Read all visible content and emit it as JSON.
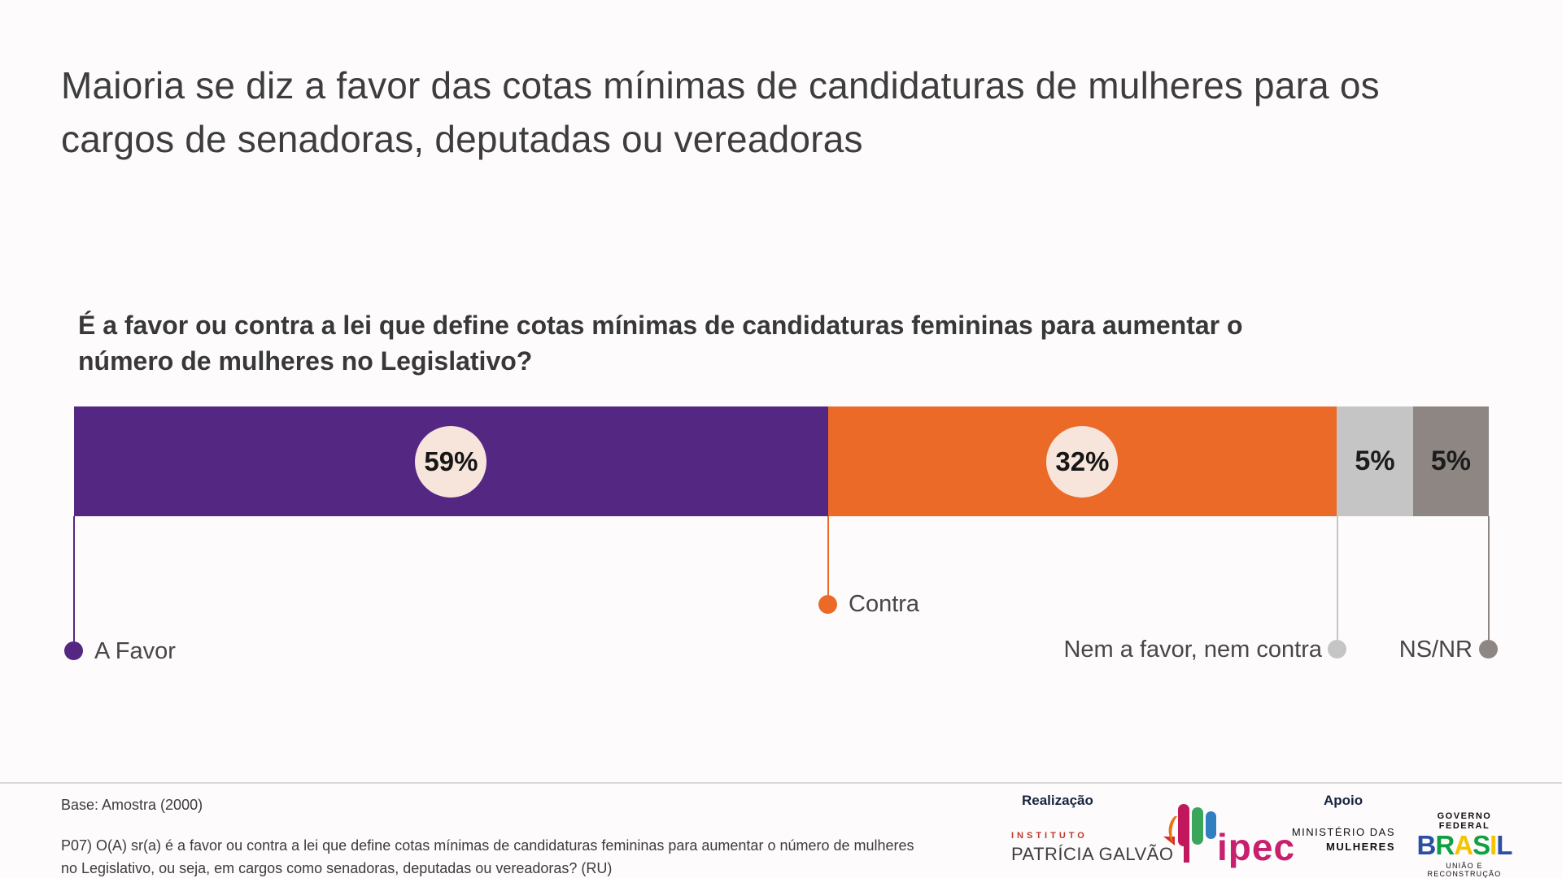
{
  "slide": {
    "title_line1": "Maioria se diz a favor das cotas mínimas de candidaturas de mulheres para os",
    "title_line2": "cargos de senadoras, deputadas ou vereadoras",
    "question_line1": "É a favor ou contra a lei que define cotas mínimas de candidaturas femininas para aumentar o",
    "question_line2": "número de mulheres no Legislativo?"
  },
  "chart_data": {
    "type": "bar",
    "subtype": "horizontal-stacked-single-bar",
    "title": "Maioria se diz a favor das cotas mínimas de candidaturas de mulheres para os cargos de senadoras, deputadas ou vereadoras",
    "question": "É a favor ou contra a lei que define cotas mínimas de candidaturas femininas para aumentar o número de mulheres no Legislativo?",
    "categories": [
      "A Favor",
      "Contra",
      "Nem a favor, nem contra",
      "NS/NR"
    ],
    "values": [
      59,
      32,
      5,
      5
    ],
    "unit": "%",
    "legend_position": "below-bar-with-leader-lines",
    "grid": false,
    "segments": [
      {
        "label": "A Favor",
        "value": 59,
        "display": "59%",
        "color": "#542783",
        "display_width_pct": 53.3,
        "value_style": "circle"
      },
      {
        "label": "Contra",
        "value": 32,
        "display": "32%",
        "color": "#ec6a27",
        "display_width_pct": 35.95,
        "value_style": "circle"
      },
      {
        "label": "Nem a favor, nem contra",
        "value": 5,
        "display": "5%",
        "color": "#c6c5c5",
        "display_width_pct": 5.4,
        "value_style": "plain"
      },
      {
        "label": "NS/NR",
        "value": 5,
        "display": "5%",
        "color": "#8d8683",
        "display_width_pct": 5.35,
        "value_style": "plain"
      }
    ],
    "value_badge_color": "#f7e5dc",
    "base": "Amostra (2000)"
  },
  "footer": {
    "base_label": "Base: Amostra (2000)",
    "source_line1": "P07) O(A) sr(a) é a favor ou contra a lei que define cotas mínimas de candidaturas femininas para aumentar o número de mulheres",
    "source_line2": "no Legislativo, ou seja, em cargos como senadoras, deputadas ou vereadoras? (RU)",
    "realizacao_label": "Realização",
    "apoio_label": "Apoio",
    "instituto": "INSTITUTO",
    "patricia_galvao": "PATRÍCIA GALVÃO",
    "ipec": "ipec",
    "ministerio_line1": "MINISTÉRIO DAS",
    "ministerio_line2": "MULHERES",
    "governo_federal": "GOVERNO FEDERAL",
    "brasil_letters": [
      {
        "ch": "B",
        "color": "#2b4fa2"
      },
      {
        "ch": "R",
        "color": "#0fa13f"
      },
      {
        "ch": "A",
        "color": "#f5c400"
      },
      {
        "ch": "S",
        "color": "#0fa13f"
      },
      {
        "ch": "I",
        "color": "#f5c400"
      },
      {
        "ch": "L",
        "color": "#2b4fa2"
      }
    ],
    "uniao": "UNIÃO E RECONSTRUÇÃO"
  },
  "colors": {
    "background": "#fdfbfc",
    "title_text": "#3d3d3c",
    "a_favor": "#542783",
    "contra": "#ec6a27",
    "nem_nem": "#c6c5c5",
    "nsnr": "#8d8683",
    "value_badge": "#f7e5dc",
    "ipec_magenta": "#c81f6e",
    "instituto_red": "#c0392b",
    "divider": "#d8d8d8"
  }
}
